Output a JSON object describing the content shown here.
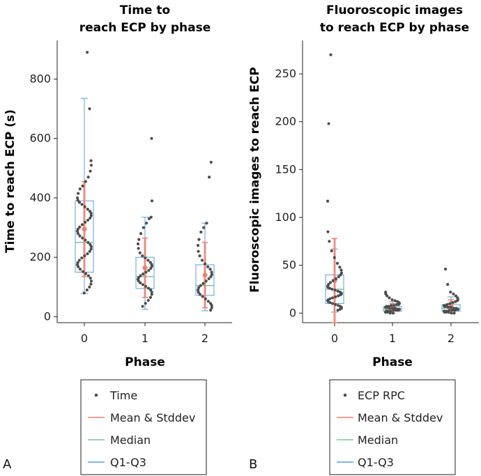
{
  "panels": [
    {
      "letter": "A",
      "title_line1": "Time to",
      "title_line2": "reach ECP by phase",
      "ylabel": "Time to reach ECP (s)",
      "xlabel": "Phase",
      "legend": [
        "Time",
        "Mean & Stddev",
        "Median",
        "Q1-Q3"
      ]
    },
    {
      "letter": "B",
      "title_line1": "Fluoroscopic images",
      "title_line2": "to reach ECP by phase",
      "ylabel": "Fluoroscopic images to reach ECP",
      "xlabel": "Phase",
      "legend": [
        "ECP RPC",
        "Mean & Stddev",
        "Median",
        "Q1-Q3"
      ]
    }
  ],
  "colors": {
    "points": "#4d4d4d",
    "mean": "#f08070",
    "median": "#7fc49a",
    "box": "#5aa0d8",
    "axis": "#222222"
  },
  "chart_data": [
    {
      "type": "box-scatter",
      "title": "Time to reach ECP by phase",
      "xlabel": "Phase",
      "ylabel": "Time to reach ECP (s)",
      "categories": [
        "0",
        "1",
        "2"
      ],
      "ylim": [
        -20,
        930
      ],
      "yticks": [
        0,
        200,
        400,
        600,
        800
      ],
      "series": [
        {
          "name": "0",
          "mean": 295,
          "sd": 160,
          "median": 250,
          "q1": 150,
          "q3": 390,
          "whisker_low": 78,
          "whisker_high": 735,
          "points": [
            890,
            700,
            525,
            510,
            490,
            470,
            455,
            440,
            430,
            415,
            400,
            392,
            385,
            378,
            370,
            362,
            355,
            348,
            340,
            332,
            325,
            318,
            310,
            302,
            295,
            288,
            280,
            272,
            265,
            258,
            250,
            243,
            236,
            228,
            220,
            212,
            205,
            198,
            190,
            182,
            175,
            168,
            160,
            152,
            145,
            138,
            130,
            120,
            110,
            100,
            90,
            80
          ]
        },
        {
          "name": "1",
          "mean": 165,
          "sd": 100,
          "median": 135,
          "q1": 95,
          "q3": 200,
          "whisker_low": 25,
          "whisker_high": 335,
          "points": [
            600,
            390,
            335,
            330,
            315,
            300,
            280,
            260,
            245,
            230,
            215,
            205,
            198,
            190,
            183,
            176,
            170,
            163,
            156,
            150,
            144,
            138,
            132,
            126,
            120,
            114,
            108,
            102,
            96,
            90,
            82,
            75,
            65,
            55,
            45,
            35
          ]
        },
        {
          "name": "2",
          "mean": 140,
          "sd": 110,
          "median": 105,
          "q1": 72,
          "q3": 175,
          "whisker_low": 20,
          "whisker_high": 315,
          "points": [
            520,
            470,
            315,
            300,
            285,
            260,
            240,
            220,
            205,
            190,
            178,
            168,
            160,
            150,
            142,
            135,
            128,
            120,
            112,
            105,
            98,
            90,
            82,
            75,
            68,
            60,
            52,
            45,
            38,
            30,
            22
          ]
        }
      ]
    },
    {
      "type": "box-scatter",
      "title": "Fluoroscopic images to reach ECP by phase",
      "xlabel": "Phase",
      "ylabel": "Fluoroscopic images to reach ECP",
      "categories": [
        "0",
        "1",
        "2"
      ],
      "ylim": [
        -10,
        285
      ],
      "yticks": [
        0,
        50,
        100,
        150,
        200,
        250
      ],
      "series": [
        {
          "name": "0",
          "mean": 34,
          "sd": 44,
          "median": 25,
          "q1": 10,
          "q3": 40,
          "whisker_low": 1,
          "whisker_high": 67,
          "points": [
            270,
            198,
            117,
            85,
            75,
            65,
            58,
            52,
            48,
            45,
            42,
            40,
            38,
            36,
            34,
            32,
            30,
            28,
            27,
            26,
            25,
            24,
            23,
            22,
            21,
            20,
            19,
            18,
            17,
            16,
            15,
            14,
            13,
            12,
            11,
            10,
            9,
            8,
            7,
            6,
            5,
            4,
            3
          ]
        },
        {
          "name": "1",
          "mean": 6,
          "sd": 4,
          "median": 4,
          "q1": 2,
          "q3": 7,
          "whisker_low": 0,
          "whisker_high": 12,
          "points": [
            22,
            20,
            18,
            16,
            14,
            13,
            12,
            11,
            10,
            9,
            9,
            8,
            8,
            7,
            7,
            6,
            6,
            6,
            5,
            5,
            5,
            4,
            4,
            4,
            3,
            3,
            3,
            2,
            2,
            2,
            1,
            1,
            1,
            0,
            0
          ]
        },
        {
          "name": "2",
          "mean": 7,
          "sd": 7,
          "median": 5,
          "q1": 2,
          "q3": 9,
          "whisker_low": 0,
          "whisker_high": 17,
          "points": [
            46,
            30,
            22,
            20,
            18,
            16,
            14,
            13,
            12,
            11,
            10,
            9,
            8,
            8,
            7,
            7,
            6,
            6,
            5,
            5,
            4,
            4,
            4,
            3,
            3,
            3,
            2,
            2,
            2,
            1,
            1,
            1,
            0,
            0
          ]
        }
      ]
    }
  ]
}
